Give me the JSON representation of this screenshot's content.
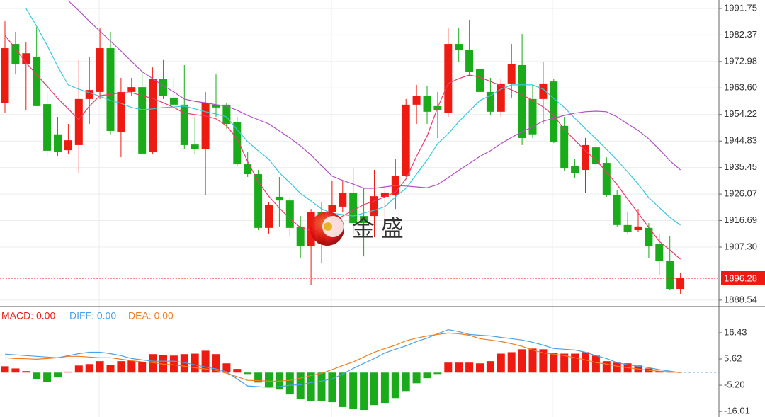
{
  "watermark": "金 盛",
  "chart_data": [
    {
      "type": "candlestick",
      "open": [
        1958.4,
        1979.2,
        1972.2,
        1974.7,
        1957.9,
        1947.2,
        1941.6,
        1943.4,
        1959.7,
        1962.2,
        1977.7,
        1947.9,
        1962.2,
        1963.9,
        1940.9,
        1966.7,
        1960.2,
        1957.7,
        1943.6,
        1942.1,
        1957.7,
        1957.7,
        1951.4,
        1936.6,
        1933.1,
        1914.1,
        1925.1,
        1923.8,
        1914.6,
        1907.8,
        1919.6,
        1919.6,
        1921.6,
        1926.6,
        1918.3,
        1918.3,
        1925.1,
        1925.8,
        1932.6,
        1957.7,
        1960.9,
        1957.2,
        1954.7,
        1979.2,
        1977.2,
        1970.2,
        1962.2,
        1955.2,
        1965.2,
        1971.7,
        1959.7,
        1959.7,
        1965.9,
        1950.2,
        1935.9,
        1934.6,
        1942.6,
        1937.1,
        1925.8,
        1915.1,
        1913.3,
        1914.1,
        1908.3,
        1902.5,
        1892.5
      ],
      "high": [
        1987.2,
        1983.5,
        1979.7,
        1985.2,
        1962.2,
        1953.4,
        1950.9,
        1973.5,
        1974.7,
        1984.7,
        1983.5,
        1967.2,
        1967.2,
        1969.7,
        1970.9,
        1973.5,
        1967.2,
        1971.7,
        1953.4,
        1962.2,
        1968.4,
        1958.4,
        1953.4,
        1940.9,
        1934.6,
        1923.3,
        1932.1,
        1924.6,
        1918.3,
        1920.8,
        1923.3,
        1930.9,
        1930.9,
        1935.1,
        1928.4,
        1934.6,
        1929.1,
        1938.4,
        1959.7,
        1964.7,
        1964.2,
        1962.2,
        1984.7,
        1984.7,
        1987.7,
        1972.7,
        1967.2,
        1966.7,
        1979.2,
        1982.7,
        1964.7,
        1972.7,
        1966.7,
        1953.4,
        1938.4,
        1945.9,
        1947.2,
        1939.1,
        1927.6,
        1919.6,
        1920.8,
        1915.8,
        1912.1,
        1911.3,
        1898.3
      ],
      "low": [
        1954.7,
        1968.4,
        1955.9,
        1957.2,
        1939.6,
        1939.6,
        1940.1,
        1933.4,
        1950.9,
        1959.7,
        1947.2,
        1939.1,
        1960.9,
        1940.1,
        1940.1,
        1959.7,
        1957.2,
        1942.1,
        1940.1,
        1925.8,
        1953.4,
        1949.2,
        1935.9,
        1932.1,
        1913.3,
        1912.1,
        1914.6,
        1911.3,
        1903.3,
        1894.0,
        1901.5,
        1915.8,
        1919.6,
        1912.1,
        1904.0,
        1910.8,
        1917.1,
        1920.8,
        1932.1,
        1950.9,
        1950.9,
        1945.9,
        1953.4,
        1972.7,
        1967.7,
        1960.9,
        1953.9,
        1953.4,
        1960.2,
        1943.4,
        1945.9,
        1950.9,
        1944.1,
        1934.1,
        1931.6,
        1926.6,
        1935.9,
        1925.1,
        1914.6,
        1912.1,
        1912.6,
        1903.3,
        1897.5,
        1892.0,
        1890.8
      ],
      "close": [
        1977.7,
        1972.2,
        1975.9,
        1957.2,
        1941.4,
        1940.9,
        1945.1,
        1959.7,
        1962.9,
        1977.7,
        1948.4,
        1962.2,
        1963.9,
        1940.4,
        1966.7,
        1960.9,
        1957.7,
        1943.4,
        1942.1,
        1958.4,
        1956.7,
        1950.9,
        1936.6,
        1933.1,
        1914.1,
        1922.1,
        1923.8,
        1914.1,
        1907.8,
        1919.6,
        1908.3,
        1922.1,
        1926.6,
        1915.8,
        1915.8,
        1925.3,
        1926.6,
        1932.6,
        1957.7,
        1960.9,
        1955.2,
        1955.9,
        1979.2,
        1977.2,
        1969.2,
        1962.2,
        1955.2,
        1965.2,
        1972.2,
        1945.9,
        1947.2,
        1965.2,
        1944.6,
        1935.1,
        1933.4,
        1943.4,
        1936.6,
        1925.8,
        1915.1,
        1912.6,
        1914.6,
        1907.8,
        1902.5,
        1892.5,
        1896.28
      ],
      "up_color": "#ee1b12",
      "down_color": "#1aab1a",
      "series": [
        {
          "color": "#e83a6a",
          "values": [
            1982.2,
            1977.5,
            1972.5,
            1968.4,
            1964.2,
            1959.9,
            1956.2,
            1952.4,
            1957.2,
            1960.9,
            1961.4,
            1961.9,
            1961.9,
            1960.9,
            1959.9,
            1958.4,
            1956.7,
            1954.7,
            1954.2,
            1953.7,
            1952.7,
            1950.2,
            1945.6,
            1937.6,
            1930.4,
            1925.3,
            1921.1,
            1917.3,
            1914.3,
            1913.1,
            1912.8,
            1916.3,
            1918.3,
            1920.3,
            1922.3,
            1923.6,
            1925.1,
            1926.8,
            1931.4,
            1939.4,
            1946.6,
            1956.7,
            1965.2,
            1966.9,
            1968.2,
            1967.4,
            1965.9,
            1964.4,
            1962.9,
            1961.2,
            1959.2,
            1956.9,
            1953.9,
            1948.9,
            1945.1,
            1941.4,
            1938.1,
            1933.9,
            1929.4,
            1924.3,
            1919.3,
            1914.3,
            1909.3,
            1906.3,
            1903.0
          ]
        },
        {
          "color": "#3cc6de",
          "values": [
            null,
            null,
            1991.7,
            1985.5,
            1978.7,
            1971.2,
            1964.7,
            1963.2,
            1961.9,
            1960.7,
            1959.2,
            1958.2,
            1956.7,
            1955.9,
            1956.2,
            1956.7,
            1956.9,
            1957.2,
            1956.2,
            1955.2,
            1954.4,
            1953.4,
            1948.9,
            1944.6,
            1941.4,
            1938.4,
            1933.6,
            1930.1,
            1926.3,
            1923.6,
            1920.8,
            1919.3,
            1918.8,
            1918.3,
            1919.3,
            1920.3,
            1921.6,
            1925.1,
            1928.1,
            1933.1,
            1938.1,
            1943.9,
            1947.4,
            1951.7,
            1955.4,
            1959.2,
            1960.9,
            1963.2,
            1964.7,
            1964.7,
            1964.7,
            1963.2,
            1959.9,
            1956.7,
            1952.9,
            1949.2,
            1945.6,
            1941.9,
            1938.1,
            1933.9,
            1929.6,
            1924.8,
            1921.3,
            1917.8,
            1915.1
          ]
        },
        {
          "color": "#b24ec6",
          "values": [
            null,
            null,
            null,
            null,
            null,
            null,
            1994.5,
            1991.0,
            1987.2,
            1983.7,
            1980.2,
            1976.7,
            1973.0,
            1969.4,
            1966.9,
            1964.4,
            1962.2,
            1959.7,
            1958.9,
            1958.4,
            1957.7,
            1957.2,
            1955.7,
            1953.9,
            1952.4,
            1950.9,
            1948.4,
            1945.9,
            1943.1,
            1939.9,
            1936.1,
            1932.4,
            1930.9,
            1929.6,
            1928.1,
            1928.1,
            1928.6,
            1929.1,
            1928.9,
            1928.6,
            1928.3,
            1929.4,
            1931.9,
            1934.4,
            1936.9,
            1939.4,
            1941.4,
            1943.9,
            1946.1,
            1948.1,
            1949.9,
            1951.9,
            1952.9,
            1953.9,
            1954.7,
            1955.2,
            1955.4,
            1955.2,
            1953.4,
            1950.9,
            1948.6,
            1945.6,
            1941.9,
            1937.9,
            1934.6
          ]
        }
      ],
      "ylim": [
        1886.5,
        1994.75
      ],
      "yticks": [
        1991.75,
        1982.37,
        1972.98,
        {
          "value": 1963.6,
          "label": "1963.60"
        },
        1954.22,
        1944.83,
        1935.45,
        1926.07,
        1916.69,
        {
          "value": 1907.3,
          "label": "1907.30"
        },
        1888.54
      ],
      "last_price": 1896.28,
      "grid": true
    },
    {
      "type": "macd",
      "histogram": {
        "label": "MACD: 0.00",
        "color": "#ee1b12",
        "values": [
          2.6,
          1.7,
          0.6,
          -2.6,
          -3.8,
          -2.0,
          0.4,
          2.9,
          3.5,
          4.7,
          3.2,
          4.7,
          4.9,
          4.4,
          7.6,
          7.3,
          7.0,
          7.6,
          7.8,
          9.0,
          7.6,
          3.8,
          1.5,
          -0.6,
          -4.1,
          -6.1,
          -7.0,
          -9.0,
          -10.8,
          -11.6,
          -11.6,
          -12.2,
          -14.2,
          -15.1,
          -15.4,
          -13.4,
          -12.5,
          -10.5,
          -7.6,
          -4.4,
          -2.3,
          -0.6,
          4.1,
          4.1,
          4.1,
          3.8,
          4.7,
          7.8,
          8.4,
          9.6,
          9.9,
          9.6,
          8.1,
          7.8,
          7.8,
          8.4,
          7.0,
          4.7,
          4.1,
          3.8,
          2.9,
          1.7,
          0.6,
          0.3,
          0
        ],
        "up_color": "#ee1b12",
        "down_color": "#1aab1a"
      },
      "series": [
        {
          "label": "DIFF: 0.00",
          "color": "#4ba2e6",
          "values": [
            7.6,
            7.3,
            7.0,
            6.7,
            6.4,
            6.1,
            7.0,
            7.8,
            8.4,
            8.4,
            7.8,
            7.0,
            5.8,
            5.2,
            4.7,
            4.7,
            4.7,
            4.1,
            3.2,
            2.3,
            1.5,
            0.3,
            -2.6,
            -5.5,
            -5.8,
            -6.1,
            -5.8,
            -5.2,
            -5.0,
            -4.1,
            -3.5,
            -2.6,
            -0.6,
            1.7,
            3.8,
            5.8,
            8.1,
            9.6,
            11.0,
            12.8,
            14.2,
            16.0,
            17.7,
            16.9,
            15.7,
            15.4,
            15.1,
            14.5,
            14.0,
            13.4,
            12.5,
            11.3,
            9.9,
            9.6,
            9.3,
            8.4,
            7.0,
            5.8,
            4.1,
            3.2,
            2.6,
            2.0,
            1.2,
            0.6,
            0
          ]
        },
        {
          "label": "DEA: 0.00",
          "color": "#f07d22",
          "values": [
            6.1,
            5.8,
            5.7,
            5.5,
            5.8,
            6.1,
            6.7,
            6.7,
            6.4,
            6.1,
            6.1,
            5.5,
            4.9,
            4.4,
            4.1,
            3.5,
            3.2,
            2.6,
            2.0,
            1.5,
            0.9,
            -0.3,
            -1.7,
            -3.2,
            -3.3,
            -3.5,
            -3.5,
            -3.2,
            -2.3,
            -1.2,
            -0.3,
            1.2,
            2.9,
            4.4,
            6.4,
            8.4,
            9.9,
            11.3,
            13.1,
            14.2,
            15.1,
            15.7,
            16.3,
            16.0,
            15.4,
            14.0,
            13.4,
            12.8,
            11.9,
            10.8,
            9.3,
            8.1,
            7.6,
            7.0,
            6.1,
            5.2,
            4.1,
            3.5,
            2.6,
            2.0,
            1.5,
            0.9,
            0.6,
            0.3,
            0
          ]
        }
      ],
      "ylim": [
        -18.3,
        27.2
      ],
      "yticks": [
        16.43,
        5.62,
        {
          "value": -5.2,
          "label": "-5.20"
        },
        -16.01
      ]
    }
  ]
}
